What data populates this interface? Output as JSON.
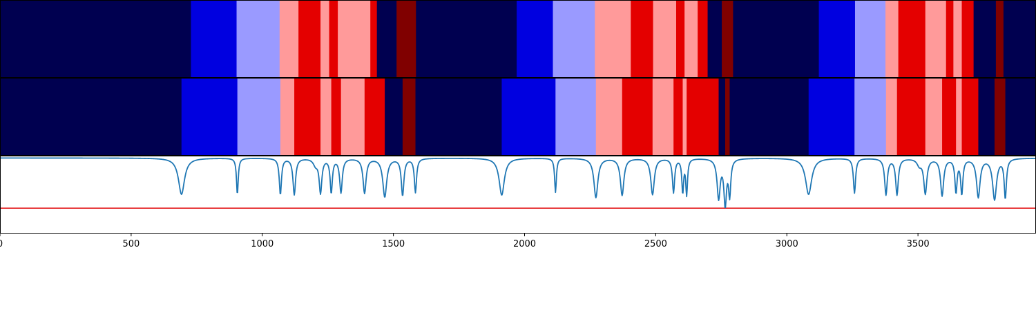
{
  "colors": {
    "class0": "#000050",
    "class1": "#0000e0",
    "class2": "#9a9aff",
    "class3": "#ff9a9a",
    "class4": "#e40000",
    "class5": "#800000",
    "line": "#1f77b4",
    "threshold": "#e41a1c"
  },
  "chart_data": [
    {
      "type": "heatmap",
      "panel": "top-strip",
      "xlim": [
        0,
        3950
      ],
      "segments": [
        {
          "start": 0,
          "end": 728,
          "class": 0
        },
        {
          "start": 728,
          "end": 902,
          "class": 1
        },
        {
          "start": 902,
          "end": 1066,
          "class": 2
        },
        {
          "start": 1066,
          "end": 1138,
          "class": 3
        },
        {
          "start": 1138,
          "end": 1222,
          "class": 4
        },
        {
          "start": 1222,
          "end": 1255,
          "class": 3
        },
        {
          "start": 1255,
          "end": 1288,
          "class": 4
        },
        {
          "start": 1288,
          "end": 1412,
          "class": 3
        },
        {
          "start": 1412,
          "end": 1437,
          "class": 4
        },
        {
          "start": 1437,
          "end": 1512,
          "class": 0
        },
        {
          "start": 1512,
          "end": 1586,
          "class": 5
        },
        {
          "start": 1586,
          "end": 1970,
          "class": 0
        },
        {
          "start": 1970,
          "end": 2108,
          "class": 1
        },
        {
          "start": 2108,
          "end": 2268,
          "class": 2
        },
        {
          "start": 2268,
          "end": 2405,
          "class": 3
        },
        {
          "start": 2405,
          "end": 2490,
          "class": 4
        },
        {
          "start": 2490,
          "end": 2578,
          "class": 3
        },
        {
          "start": 2578,
          "end": 2610,
          "class": 4
        },
        {
          "start": 2610,
          "end": 2660,
          "class": 3
        },
        {
          "start": 2660,
          "end": 2698,
          "class": 4
        },
        {
          "start": 2698,
          "end": 2752,
          "class": 0
        },
        {
          "start": 2752,
          "end": 2795,
          "class": 5
        },
        {
          "start": 2795,
          "end": 3122,
          "class": 0
        },
        {
          "start": 3122,
          "end": 3260,
          "class": 1
        },
        {
          "start": 3260,
          "end": 3376,
          "class": 2
        },
        {
          "start": 3376,
          "end": 3425,
          "class": 3
        },
        {
          "start": 3425,
          "end": 3528,
          "class": 4
        },
        {
          "start": 3528,
          "end": 3607,
          "class": 3
        },
        {
          "start": 3607,
          "end": 3635,
          "class": 4
        },
        {
          "start": 3635,
          "end": 3667,
          "class": 3
        },
        {
          "start": 3667,
          "end": 3712,
          "class": 4
        },
        {
          "start": 3712,
          "end": 3797,
          "class": 0
        },
        {
          "start": 3797,
          "end": 3826,
          "class": 5
        },
        {
          "start": 3826,
          "end": 3950,
          "class": 0
        }
      ]
    },
    {
      "type": "heatmap",
      "panel": "middle-strip",
      "xlim": [
        0,
        3950
      ],
      "segments": [
        {
          "start": 0,
          "end": 692,
          "class": 0
        },
        {
          "start": 692,
          "end": 905,
          "class": 1
        },
        {
          "start": 905,
          "end": 1069,
          "class": 2
        },
        {
          "start": 1069,
          "end": 1122,
          "class": 3
        },
        {
          "start": 1122,
          "end": 1222,
          "class": 4
        },
        {
          "start": 1222,
          "end": 1263,
          "class": 3
        },
        {
          "start": 1263,
          "end": 1300,
          "class": 4
        },
        {
          "start": 1300,
          "end": 1390,
          "class": 3
        },
        {
          "start": 1390,
          "end": 1467,
          "class": 4
        },
        {
          "start": 1467,
          "end": 1535,
          "class": 0
        },
        {
          "start": 1535,
          "end": 1584,
          "class": 5
        },
        {
          "start": 1584,
          "end": 1913,
          "class": 0
        },
        {
          "start": 1913,
          "end": 2118,
          "class": 1
        },
        {
          "start": 2118,
          "end": 2272,
          "class": 2
        },
        {
          "start": 2272,
          "end": 2372,
          "class": 3
        },
        {
          "start": 2372,
          "end": 2488,
          "class": 4
        },
        {
          "start": 2488,
          "end": 2568,
          "class": 3
        },
        {
          "start": 2568,
          "end": 2603,
          "class": 4
        },
        {
          "start": 2603,
          "end": 2618,
          "class": 3
        },
        {
          "start": 2618,
          "end": 2740,
          "class": 4
        },
        {
          "start": 2740,
          "end": 2765,
          "class": 0
        },
        {
          "start": 2765,
          "end": 2782,
          "class": 5
        },
        {
          "start": 2782,
          "end": 3083,
          "class": 0
        },
        {
          "start": 3083,
          "end": 3258,
          "class": 1
        },
        {
          "start": 3258,
          "end": 3378,
          "class": 2
        },
        {
          "start": 3378,
          "end": 3420,
          "class": 3
        },
        {
          "start": 3420,
          "end": 3528,
          "class": 4
        },
        {
          "start": 3528,
          "end": 3592,
          "class": 3
        },
        {
          "start": 3592,
          "end": 3645,
          "class": 4
        },
        {
          "start": 3645,
          "end": 3667,
          "class": 3
        },
        {
          "start": 3667,
          "end": 3730,
          "class": 4
        },
        {
          "start": 3730,
          "end": 3792,
          "class": 0
        },
        {
          "start": 3792,
          "end": 3833,
          "class": 5
        },
        {
          "start": 3833,
          "end": 3950,
          "class": 0
        }
      ]
    },
    {
      "type": "line",
      "panel": "signal",
      "xlim": [
        0,
        3950
      ],
      "ylim": [
        0,
        1
      ],
      "xticks": [
        0,
        500,
        1000,
        1500,
        2000,
        2500,
        3000,
        3500
      ],
      "xtick_labels": [
        "0",
        "500",
        "1000",
        "1500",
        "2000",
        "2500",
        "3000",
        "3500"
      ],
      "baseline": 0.97,
      "threshold": 0.32,
      "dips": [
        {
          "x": 692,
          "depth": 0.47,
          "width": 14
        },
        {
          "x": 905,
          "depth": 0.47,
          "width": 4
        },
        {
          "x": 1069,
          "depth": 0.47,
          "width": 5
        },
        {
          "x": 1122,
          "depth": 0.47,
          "width": 6
        },
        {
          "x": 1203,
          "depth": 0.08,
          "width": 10
        },
        {
          "x": 1222,
          "depth": 0.44,
          "width": 6
        },
        {
          "x": 1263,
          "depth": 0.44,
          "width": 5
        },
        {
          "x": 1300,
          "depth": 0.44,
          "width": 6
        },
        {
          "x": 1390,
          "depth": 0.45,
          "width": 7
        },
        {
          "x": 1467,
          "depth": 0.5,
          "width": 9
        },
        {
          "x": 1535,
          "depth": 0.48,
          "width": 6
        },
        {
          "x": 1584,
          "depth": 0.44,
          "width": 5
        },
        {
          "x": 1913,
          "depth": 0.48,
          "width": 12
        },
        {
          "x": 2118,
          "depth": 0.44,
          "width": 4
        },
        {
          "x": 2272,
          "depth": 0.51,
          "width": 9
        },
        {
          "x": 2372,
          "depth": 0.48,
          "width": 8
        },
        {
          "x": 2488,
          "depth": 0.47,
          "width": 8
        },
        {
          "x": 2568,
          "depth": 0.44,
          "width": 5
        },
        {
          "x": 2603,
          "depth": 0.43,
          "width": 4
        },
        {
          "x": 2618,
          "depth": 0.46,
          "width": 4
        },
        {
          "x": 2740,
          "depth": 0.51,
          "width": 7
        },
        {
          "x": 2765,
          "depth": 0.58,
          "width": 6
        },
        {
          "x": 2782,
          "depth": 0.46,
          "width": 5
        },
        {
          "x": 3083,
          "depth": 0.47,
          "width": 14
        },
        {
          "x": 3258,
          "depth": 0.45,
          "width": 5
        },
        {
          "x": 3378,
          "depth": 0.47,
          "width": 6
        },
        {
          "x": 3420,
          "depth": 0.47,
          "width": 6
        },
        {
          "x": 3505,
          "depth": 0.08,
          "width": 10
        },
        {
          "x": 3528,
          "depth": 0.45,
          "width": 7
        },
        {
          "x": 3592,
          "depth": 0.48,
          "width": 7
        },
        {
          "x": 3645,
          "depth": 0.43,
          "width": 5
        },
        {
          "x": 3667,
          "depth": 0.45,
          "width": 5
        },
        {
          "x": 3730,
          "depth": 0.5,
          "width": 8
        },
        {
          "x": 3792,
          "depth": 0.53,
          "width": 9
        },
        {
          "x": 3833,
          "depth": 0.51,
          "width": 5
        }
      ]
    }
  ]
}
